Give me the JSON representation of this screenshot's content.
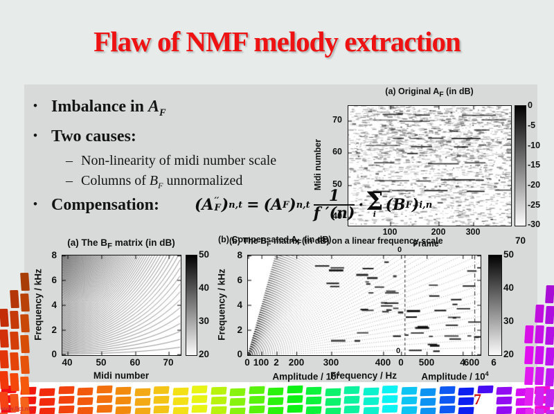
{
  "slide": {
    "title": "Flaw of NMF melody extraction",
    "page_number": "7",
    "watermark": "www.fjct.nfo",
    "bullet_glyph": "•",
    "dash_glyph": "–",
    "colors": {
      "title_red": "#ee1212",
      "page_red": "#cc1111",
      "panel_gray": "#d7dad9",
      "bg": "#e7ebe9"
    }
  },
  "bullets": {
    "b1_pre": "Imbalance in ",
    "b1_var": "A",
    "b1_sub": "F",
    "b2": "Two causes:",
    "s1": "Non-linearity of midi number scale",
    "s2_pre": "Columns of ",
    "s2_var": "B",
    "s2_sub": "F",
    "s2_post": " unnormalized",
    "b3": "Compensation:"
  },
  "formula": {
    "l1": "(A",
    "l1sup": "′′",
    "l1sub": "F",
    "l2": ")",
    "l2sub": "n,t",
    "eq": "=",
    "r1": "(A",
    "r1sub": "F",
    "r2": ")",
    "r2sub": "n,t",
    "num": "1",
    "den": "f ′(n)",
    "dot": "·",
    "sigma": "Σ",
    "sigsub": "i",
    "s1": "(B",
    "s1sub": "F",
    "s2": ")",
    "s2sub": "i,n"
  },
  "figures": {
    "af": {
      "title_pre": "(a) Original A",
      "title_sub": "F",
      "title_post": " (in dB)",
      "ylabel": "Midi number",
      "xlabel": "Frame",
      "yticks": [
        "70",
        "60",
        "50",
        "40"
      ],
      "xticks": [
        "100",
        "200",
        "300"
      ],
      "cticks": [
        "0",
        "-5",
        "-10",
        "-15",
        "-20",
        "-25",
        "-30"
      ]
    },
    "bf": {
      "title_pre": "(a) The B",
      "title_sub": "F",
      "title_post": " matrix (in dB)",
      "ylabel": "Frequency / kHz",
      "xlabel": "Midi number",
      "yticks": [
        "8",
        "6",
        "4",
        "2",
        "0"
      ],
      "xticks": [
        "40",
        "50",
        "60",
        "70"
      ],
      "cticks": [
        "50",
        "40",
        "30",
        "20"
      ]
    },
    "bfl": {
      "caption1_pre": "(b) The B",
      "caption1_sub": "F",
      "caption1_post": " matrix (in dB) on a linear frequency scale",
      "caption2_pre": "(b) Compensated A",
      "caption2_sub": "F",
      "caption2_post": " (in dB)",
      "caption_extra": "70",
      "ylabel": "Frequency / kHz",
      "yticks": [
        "8",
        "6",
        "4",
        "2",
        "0"
      ],
      "xticks": [
        "0",
        "100",
        "2",
        "200",
        "300",
        "400",
        "0",
        "500",
        "4",
        "600",
        "6"
      ],
      "xlabel_left": "Amplitude / 10",
      "xlabel_left_sup": "4",
      "xlabel_mid": "Frequency / Hz",
      "xlabel_right": "Amplitude / 10",
      "xlabel_right_sup": "4",
      "cticks": [
        "50",
        "40",
        "30",
        "20"
      ],
      "artifact_zero": "0"
    }
  },
  "chart_data": [
    {
      "type": "heatmap",
      "title": "(a) Original A_F (in dB)",
      "xlabel": "Frame",
      "ylabel": "Midi number",
      "xticks": [
        100,
        200,
        300
      ],
      "yticks": [
        40,
        50,
        60,
        70
      ],
      "xlim": [
        0,
        380
      ],
      "ylim": [
        36,
        75
      ],
      "colorbar_ticks": [
        0,
        -5,
        -10,
        -15,
        -20,
        -25,
        -30
      ],
      "colorbar_range": [
        -30,
        0
      ],
      "description": "grayscale activation matrix: sparse dark horizontal note streaks on white, denser in upper midi range"
    },
    {
      "type": "heatmap",
      "title": "(a) The B_F matrix (in dB)",
      "xlabel": "Midi number",
      "ylabel": "Frequency / kHz",
      "xticks": [
        40,
        50,
        60,
        70
      ],
      "yticks": [
        0,
        2,
        4,
        6,
        8
      ],
      "xlim": [
        38,
        75.5
      ],
      "ylim": [
        0,
        8
      ],
      "colorbar_ticks": [
        50,
        40,
        30,
        20
      ],
      "colorbar_range": [
        20,
        50
      ],
      "description": "harmonic curves y = k*f0(midi)/1000 kHz for k=1..110; dense dark fan at low midi numbers thinning to the right"
    },
    {
      "type": "heatmap",
      "title": "(b) The B_F matrix (in dB) on a linear frequency scale",
      "xlabel": "Frequency / Hz",
      "ylabel": "Frequency / kHz",
      "xticks": [
        0,
        100,
        200,
        300,
        400,
        500,
        600
      ],
      "yticks": [
        0,
        2,
        4,
        6,
        8
      ],
      "xlim": [
        0,
        620
      ],
      "ylim": [
        0,
        8
      ],
      "colorbar_ticks": [
        50,
        40,
        30,
        20
      ],
      "colorbar_range": [
        20,
        50
      ],
      "overlapped_axis_ticks": [
        0,
        2,
        4,
        6
      ],
      "overlapped_axis_label": "Amplitude / 10^4",
      "description": "straight dotted harmonic lines y = k*x fanning from the origin; scattered black dashes; overlapped amplitude axes from other subplots"
    }
  ]
}
